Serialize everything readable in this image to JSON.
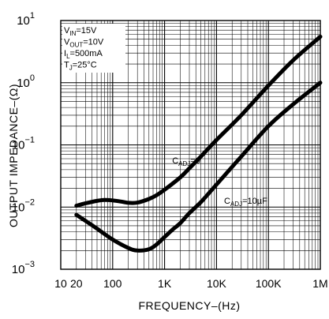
{
  "chart_data": {
    "type": "line",
    "title": "",
    "xlabel": "FREQUENCY–(Hz)",
    "ylabel": "OUTPUT IMPEDANCE–(Ω)",
    "xscale": "log",
    "yscale": "log",
    "xlim": [
      10,
      1000000
    ],
    "ylim": [
      0.001,
      10
    ],
    "grid": true,
    "x_ticks": [
      {
        "value": 10,
        "label": "10"
      },
      {
        "value": 20,
        "label": "20"
      },
      {
        "value": 100,
        "label": "100"
      },
      {
        "value": 1000,
        "label": "1K"
      },
      {
        "value": 10000,
        "label": "10K"
      },
      {
        "value": 100000,
        "label": "100K"
      },
      {
        "value": 1000000,
        "label": "1M"
      }
    ],
    "y_ticks": [
      {
        "value": 0.001,
        "base": "10",
        "exp": "−3"
      },
      {
        "value": 0.01,
        "base": "10",
        "exp": "−2"
      },
      {
        "value": 0.1,
        "base": "10",
        "exp": "−1"
      },
      {
        "value": 1,
        "base": "10",
        "exp": "0"
      },
      {
        "value": 10,
        "base": "10",
        "exp": "1"
      }
    ],
    "conditions": [
      {
        "main": "V",
        "sub": "IN",
        "rest": "=15V"
      },
      {
        "main": "V",
        "sub": "OUT",
        "rest": "=10V"
      },
      {
        "main": "I",
        "sub": "L",
        "rest": "=500mA"
      },
      {
        "main": "T",
        "sub": "J",
        "rest": "=25°C"
      }
    ],
    "series": [
      {
        "name": "CADJ=0",
        "label": {
          "main": "C",
          "sub": "ADJ",
          "rest": "=0"
        },
        "label_at": {
          "x": 1400,
          "y": 0.05
        },
        "x": [
          20,
          30,
          50,
          70,
          100,
          150,
          200,
          300,
          500,
          700,
          1000,
          2000,
          3000,
          5000,
          10000,
          30000,
          100000,
          300000,
          1000000
        ],
        "y": [
          0.0105,
          0.0115,
          0.0126,
          0.013,
          0.0128,
          0.0122,
          0.0117,
          0.0118,
          0.0135,
          0.0155,
          0.019,
          0.03,
          0.042,
          0.065,
          0.12,
          0.3,
          0.9,
          2.3,
          5.5
        ]
      },
      {
        "name": "CADJ=10µF",
        "label": {
          "main": "C",
          "sub": "ADJ",
          "rest": "=10µF"
        },
        "label_at": {
          "x": 14000,
          "y": 0.0113
        },
        "x": [
          20,
          30,
          50,
          100,
          200,
          300,
          500,
          700,
          1000,
          1500,
          2000,
          3000,
          5000,
          10000,
          30000,
          100000,
          300000,
          1000000
        ],
        "y": [
          0.0075,
          0.006,
          0.0045,
          0.003,
          0.0022,
          0.002,
          0.0021,
          0.0025,
          0.0033,
          0.0045,
          0.0055,
          0.008,
          0.012,
          0.023,
          0.065,
          0.2,
          0.45,
          1.0
        ]
      }
    ]
  }
}
